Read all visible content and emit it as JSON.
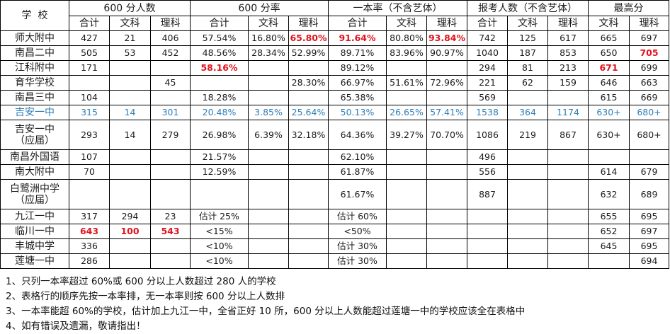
{
  "header": {
    "school": "学  校",
    "groups": [
      {
        "label": "600 分人数",
        "span": 3
      },
      {
        "label": "600 分率",
        "span": 3
      },
      {
        "label": "一本率（不含艺体）",
        "span": 3
      },
      {
        "label": "报考人数（不含艺体）",
        "span": 3
      },
      {
        "label": "最高分",
        "span": 2
      }
    ],
    "subheaders": [
      "合计",
      "文科",
      "理科",
      "合计",
      "文科",
      "理科",
      "合计",
      "文科",
      "理科",
      "合计",
      "文科",
      "理科",
      "文科",
      "理科"
    ]
  },
  "rows": [
    {
      "school": "师大附中",
      "cells": [
        "427",
        "21",
        "406",
        "57.54%",
        "16.80%",
        "65.80%",
        "91.64%",
        "80.80%",
        "93.84%",
        "742",
        "125",
        "617",
        "665",
        "697"
      ],
      "red": [
        5,
        6,
        8
      ]
    },
    {
      "school": "南昌二中",
      "cells": [
        "505",
        "53",
        "452",
        "48.56%",
        "28.34%",
        "52.99%",
        "89.71%",
        "83.96%",
        "90.97%",
        "1040",
        "187",
        "853",
        "650",
        "705"
      ],
      "red": [
        13
      ]
    },
    {
      "school": "江科附中",
      "cells": [
        "171",
        "",
        "",
        "58.16%",
        "",
        "",
        "89.12%",
        "",
        "",
        "294",
        "81",
        "213",
        "671",
        "699"
      ],
      "red": [
        3,
        12
      ]
    },
    {
      "school": "育华学校",
      "cells": [
        "",
        "",
        "45",
        "",
        "",
        "28.30%",
        "66.97%",
        "51.61%",
        "72.96%",
        "221",
        "62",
        "159",
        "646",
        "663"
      ]
    },
    {
      "school": "南昌三中",
      "cells": [
        "104",
        "",
        "",
        "18.28%",
        "",
        "",
        "65.38%",
        "",
        "",
        "569",
        "",
        "",
        "615",
        "669"
      ]
    },
    {
      "school": "吉安一中",
      "cells": [
        "315",
        "14",
        "301",
        "20.48%",
        "3.85%",
        "25.64%",
        "50.13%",
        "26.65%",
        "57.41%",
        "1538",
        "364",
        "1174",
        "630+",
        "680+"
      ],
      "style": "blue"
    },
    {
      "school": "吉安一中\n（应届）",
      "school_l1": "吉安一中",
      "school_l2": "（应届）",
      "cells": [
        "293",
        "14",
        "279",
        "26.98%",
        "6.39%",
        "32.18%",
        "64.36%",
        "39.27%",
        "70.70%",
        "1086",
        "219",
        "867",
        "630+",
        "680+"
      ],
      "tall": true
    },
    {
      "school": "南昌外国语",
      "cells": [
        "107",
        "",
        "",
        "21.57%",
        "",
        "",
        "62.10%",
        "",
        "",
        "496",
        "",
        "",
        "",
        ""
      ]
    },
    {
      "school": "南大附中",
      "cells": [
        "70",
        "",
        "",
        "12.59%",
        "",
        "",
        "61.87%",
        "",
        "",
        "556",
        "",
        "",
        "614",
        "679"
      ]
    },
    {
      "school": "白鹭洲中学\n（应届）",
      "school_l1": "白鹭洲中学",
      "school_l2": "（应届）",
      "cells": [
        "",
        "",
        "",
        "",
        "",
        "",
        "61.67%",
        "",
        "",
        "887",
        "",
        "",
        "632",
        "689"
      ],
      "tall": true
    },
    {
      "school": "九江一中",
      "cells": [
        "317",
        "294",
        "23",
        "估计 25%",
        "",
        "",
        "估计 60%",
        "",
        "",
        "",
        "",
        "",
        "655",
        "695"
      ]
    },
    {
      "school": "临川一中",
      "cells": [
        "643",
        "100",
        "543",
        "<15%",
        "",
        "",
        "<50%",
        "",
        "",
        "",
        "",
        "",
        "652",
        "697"
      ],
      "red": [
        0,
        1,
        2
      ]
    },
    {
      "school": "丰城中学",
      "cells": [
        "336",
        "",
        "",
        "<10%",
        "",
        "",
        "估计 30%",
        "",
        "",
        "",
        "",
        "",
        "645",
        "695"
      ]
    },
    {
      "school": "莲塘一中",
      "cells": [
        "286",
        "",
        "",
        "<10%",
        "",
        "",
        "估计 30%",
        "",
        "",
        "",
        "",
        "",
        "",
        "694"
      ]
    }
  ],
  "notes": [
    "1、只列一本率超过 60%或 600 分以上人数超过 280 人的学校",
    "2、表格行的顺序先按一本率排，无一本率则按 600 分以上人数排",
    "3、一本率能超 60%的学校，估计加上九江一中，全省正好 10 所，600 分以上人数能超过莲塘一中的学校应该全在表格中",
    "4、如有错误及遗漏，敬请指出！"
  ],
  "colors": {
    "highlight_red": "#e0141e",
    "highlight_blue": "#2e7fb8",
    "grid": "#000000"
  }
}
